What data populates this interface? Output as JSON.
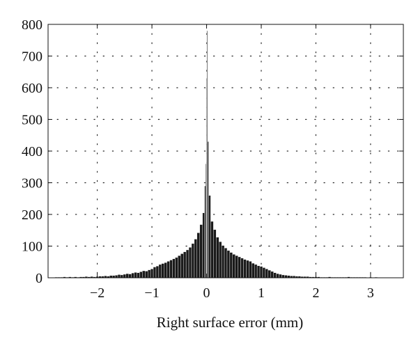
{
  "chart_data": {
    "type": "bar",
    "title": "",
    "xlabel": "Right surface error (mm)",
    "ylabel": "",
    "xlim": [
      -2.9,
      3.6
    ],
    "ylim": [
      0,
      800
    ],
    "grid": true,
    "grid_style": "dotted",
    "bar_color": "#1a1a1a",
    "x_ticks": [
      -2,
      -1,
      0,
      1,
      2,
      3
    ],
    "x_tick_labels": [
      "−2",
      "−1",
      "0",
      "1",
      "2",
      "3"
    ],
    "y_ticks": [
      0,
      100,
      200,
      300,
      400,
      500,
      600,
      700,
      800
    ],
    "y_tick_labels": [
      "0",
      "100",
      "200",
      "300",
      "400",
      "500",
      "600",
      "700",
      "800"
    ],
    "bin_width": 0.05,
    "bins": [
      {
        "x": -2.75,
        "y": 2
      },
      {
        "x": -2.7,
        "y": 2
      },
      {
        "x": -2.65,
        "y": 2
      },
      {
        "x": -2.6,
        "y": 3
      },
      {
        "x": -2.55,
        "y": 2
      },
      {
        "x": -2.5,
        "y": 3
      },
      {
        "x": -2.45,
        "y": 2
      },
      {
        "x": -2.4,
        "y": 3
      },
      {
        "x": -2.35,
        "y": 2
      },
      {
        "x": -2.3,
        "y": 3
      },
      {
        "x": -2.25,
        "y": 3
      },
      {
        "x": -2.2,
        "y": 4
      },
      {
        "x": -2.15,
        "y": 3
      },
      {
        "x": -2.1,
        "y": 4
      },
      {
        "x": -2.05,
        "y": 3
      },
      {
        "x": -2.0,
        "y": 4
      },
      {
        "x": -1.95,
        "y": 5
      },
      {
        "x": -1.9,
        "y": 5
      },
      {
        "x": -1.85,
        "y": 6
      },
      {
        "x": -1.8,
        "y": 5
      },
      {
        "x": -1.75,
        "y": 7
      },
      {
        "x": -1.7,
        "y": 7
      },
      {
        "x": -1.65,
        "y": 8
      },
      {
        "x": -1.6,
        "y": 10
      },
      {
        "x": -1.55,
        "y": 9
      },
      {
        "x": -1.5,
        "y": 11
      },
      {
        "x": -1.45,
        "y": 13
      },
      {
        "x": -1.4,
        "y": 12
      },
      {
        "x": -1.35,
        "y": 15
      },
      {
        "x": -1.3,
        "y": 17
      },
      {
        "x": -1.25,
        "y": 16
      },
      {
        "x": -1.2,
        "y": 19
      },
      {
        "x": -1.15,
        "y": 22
      },
      {
        "x": -1.1,
        "y": 21
      },
      {
        "x": -1.05,
        "y": 25
      },
      {
        "x": -1.0,
        "y": 28
      },
      {
        "x": -0.95,
        "y": 34
      },
      {
        "x": -0.9,
        "y": 37
      },
      {
        "x": -0.85,
        "y": 42
      },
      {
        "x": -0.8,
        "y": 45
      },
      {
        "x": -0.75,
        "y": 48
      },
      {
        "x": -0.7,
        "y": 52
      },
      {
        "x": -0.65,
        "y": 56
      },
      {
        "x": -0.6,
        "y": 60
      },
      {
        "x": -0.55,
        "y": 64
      },
      {
        "x": -0.5,
        "y": 70
      },
      {
        "x": -0.45,
        "y": 76
      },
      {
        "x": -0.4,
        "y": 82
      },
      {
        "x": -0.35,
        "y": 88
      },
      {
        "x": -0.3,
        "y": 96
      },
      {
        "x": -0.25,
        "y": 108
      },
      {
        "x": -0.2,
        "y": 122
      },
      {
        "x": -0.15,
        "y": 142
      },
      {
        "x": -0.1,
        "y": 168
      },
      {
        "x": -0.05,
        "y": 205
      },
      {
        "x": -0.025,
        "y": 290
      },
      {
        "x": -0.01,
        "y": 360
      },
      {
        "x": 0.0,
        "y": 630
      },
      {
        "x": 0.01,
        "y": 780
      },
      {
        "x": 0.025,
        "y": 430
      },
      {
        "x": 0.05,
        "y": 260
      },
      {
        "x": 0.1,
        "y": 178
      },
      {
        "x": 0.15,
        "y": 152
      },
      {
        "x": 0.2,
        "y": 128
      },
      {
        "x": 0.25,
        "y": 114
      },
      {
        "x": 0.3,
        "y": 102
      },
      {
        "x": 0.35,
        "y": 94
      },
      {
        "x": 0.4,
        "y": 86
      },
      {
        "x": 0.45,
        "y": 80
      },
      {
        "x": 0.5,
        "y": 74
      },
      {
        "x": 0.55,
        "y": 70
      },
      {
        "x": 0.6,
        "y": 66
      },
      {
        "x": 0.65,
        "y": 62
      },
      {
        "x": 0.7,
        "y": 58
      },
      {
        "x": 0.75,
        "y": 55
      },
      {
        "x": 0.8,
        "y": 52
      },
      {
        "x": 0.85,
        "y": 46
      },
      {
        "x": 0.9,
        "y": 42
      },
      {
        "x": 0.95,
        "y": 38
      },
      {
        "x": 1.0,
        "y": 36
      },
      {
        "x": 1.05,
        "y": 32
      },
      {
        "x": 1.1,
        "y": 28
      },
      {
        "x": 1.15,
        "y": 24
      },
      {
        "x": 1.2,
        "y": 20
      },
      {
        "x": 1.25,
        "y": 16
      },
      {
        "x": 1.3,
        "y": 13
      },
      {
        "x": 1.35,
        "y": 11
      },
      {
        "x": 1.4,
        "y": 9
      },
      {
        "x": 1.45,
        "y": 8
      },
      {
        "x": 1.5,
        "y": 7
      },
      {
        "x": 1.55,
        "y": 6
      },
      {
        "x": 1.6,
        "y": 6
      },
      {
        "x": 1.65,
        "y": 5
      },
      {
        "x": 1.7,
        "y": 5
      },
      {
        "x": 1.75,
        "y": 4
      },
      {
        "x": 1.8,
        "y": 4
      },
      {
        "x": 1.85,
        "y": 4
      },
      {
        "x": 1.9,
        "y": 3
      },
      {
        "x": 1.95,
        "y": 3
      },
      {
        "x": 2.0,
        "y": 3
      },
      {
        "x": 2.05,
        "y": 3
      },
      {
        "x": 2.1,
        "y": 2
      },
      {
        "x": 2.15,
        "y": 2
      },
      {
        "x": 2.2,
        "y": 2
      },
      {
        "x": 2.25,
        "y": 3
      },
      {
        "x": 2.3,
        "y": 2
      },
      {
        "x": 2.35,
        "y": 2
      },
      {
        "x": 2.4,
        "y": 2
      },
      {
        "x": 2.45,
        "y": 2
      },
      {
        "x": 2.5,
        "y": 2
      },
      {
        "x": 2.55,
        "y": 2
      },
      {
        "x": 2.6,
        "y": 3
      },
      {
        "x": 2.65,
        "y": 2
      },
      {
        "x": 2.7,
        "y": 2
      },
      {
        "x": 2.75,
        "y": 2
      },
      {
        "x": 2.8,
        "y": 2
      },
      {
        "x": 2.85,
        "y": 2
      },
      {
        "x": 2.9,
        "y": 2
      },
      {
        "x": 2.95,
        "y": 1
      },
      {
        "x": 3.0,
        "y": 2
      },
      {
        "x": 3.05,
        "y": 1
      },
      {
        "x": 3.1,
        "y": 2
      },
      {
        "x": 3.15,
        "y": 1
      },
      {
        "x": 3.2,
        "y": 1
      },
      {
        "x": 3.25,
        "y": 1
      },
      {
        "x": 3.3,
        "y": 1
      },
      {
        "x": 3.35,
        "y": 1
      },
      {
        "x": 3.4,
        "y": 1
      },
      {
        "x": 3.45,
        "y": 1
      },
      {
        "x": 3.5,
        "y": 1
      }
    ]
  }
}
